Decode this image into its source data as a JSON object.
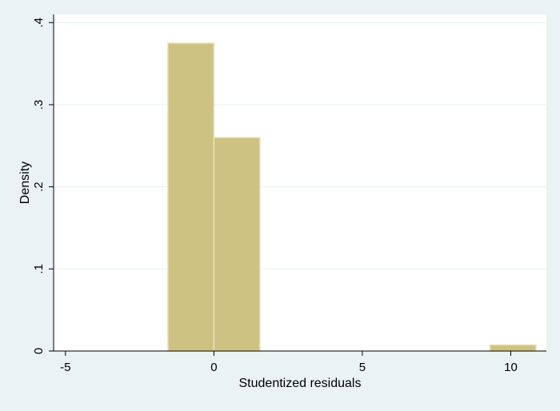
{
  "chart_data": {
    "type": "bar",
    "title": "",
    "xlabel": "Studentized residuals",
    "ylabel": "Density",
    "xlim": [
      -5.4,
      11.2
    ],
    "ylim": [
      0,
      0.41
    ],
    "grid": true,
    "x_ticks": [
      {
        "value": -5,
        "label": "-5"
      },
      {
        "value": 0,
        "label": "0"
      },
      {
        "value": 5,
        "label": "5"
      },
      {
        "value": 10,
        "label": "10"
      }
    ],
    "y_ticks": [
      {
        "value": 0,
        "label": "0"
      },
      {
        "value": 0.1,
        "label": ".1"
      },
      {
        "value": 0.2,
        "label": ".2"
      },
      {
        "value": 0.3,
        "label": ".3"
      },
      {
        "value": 0.4,
        "label": ".4"
      }
    ],
    "bins": [
      {
        "x0": -1.55,
        "x1": 0.0,
        "density": 0.375
      },
      {
        "x0": 0.0,
        "x1": 1.55,
        "density": 0.26
      },
      {
        "x0": 9.3,
        "x1": 10.85,
        "density": 0.0075
      }
    ],
    "colors": {
      "background": "#eaf2f3",
      "plot_area": "#ffffff",
      "bar_fill": "#cdc282",
      "bar_stroke": "#e9e2b8",
      "gridline": "#eaf2f3",
      "axis": "#000000"
    }
  }
}
